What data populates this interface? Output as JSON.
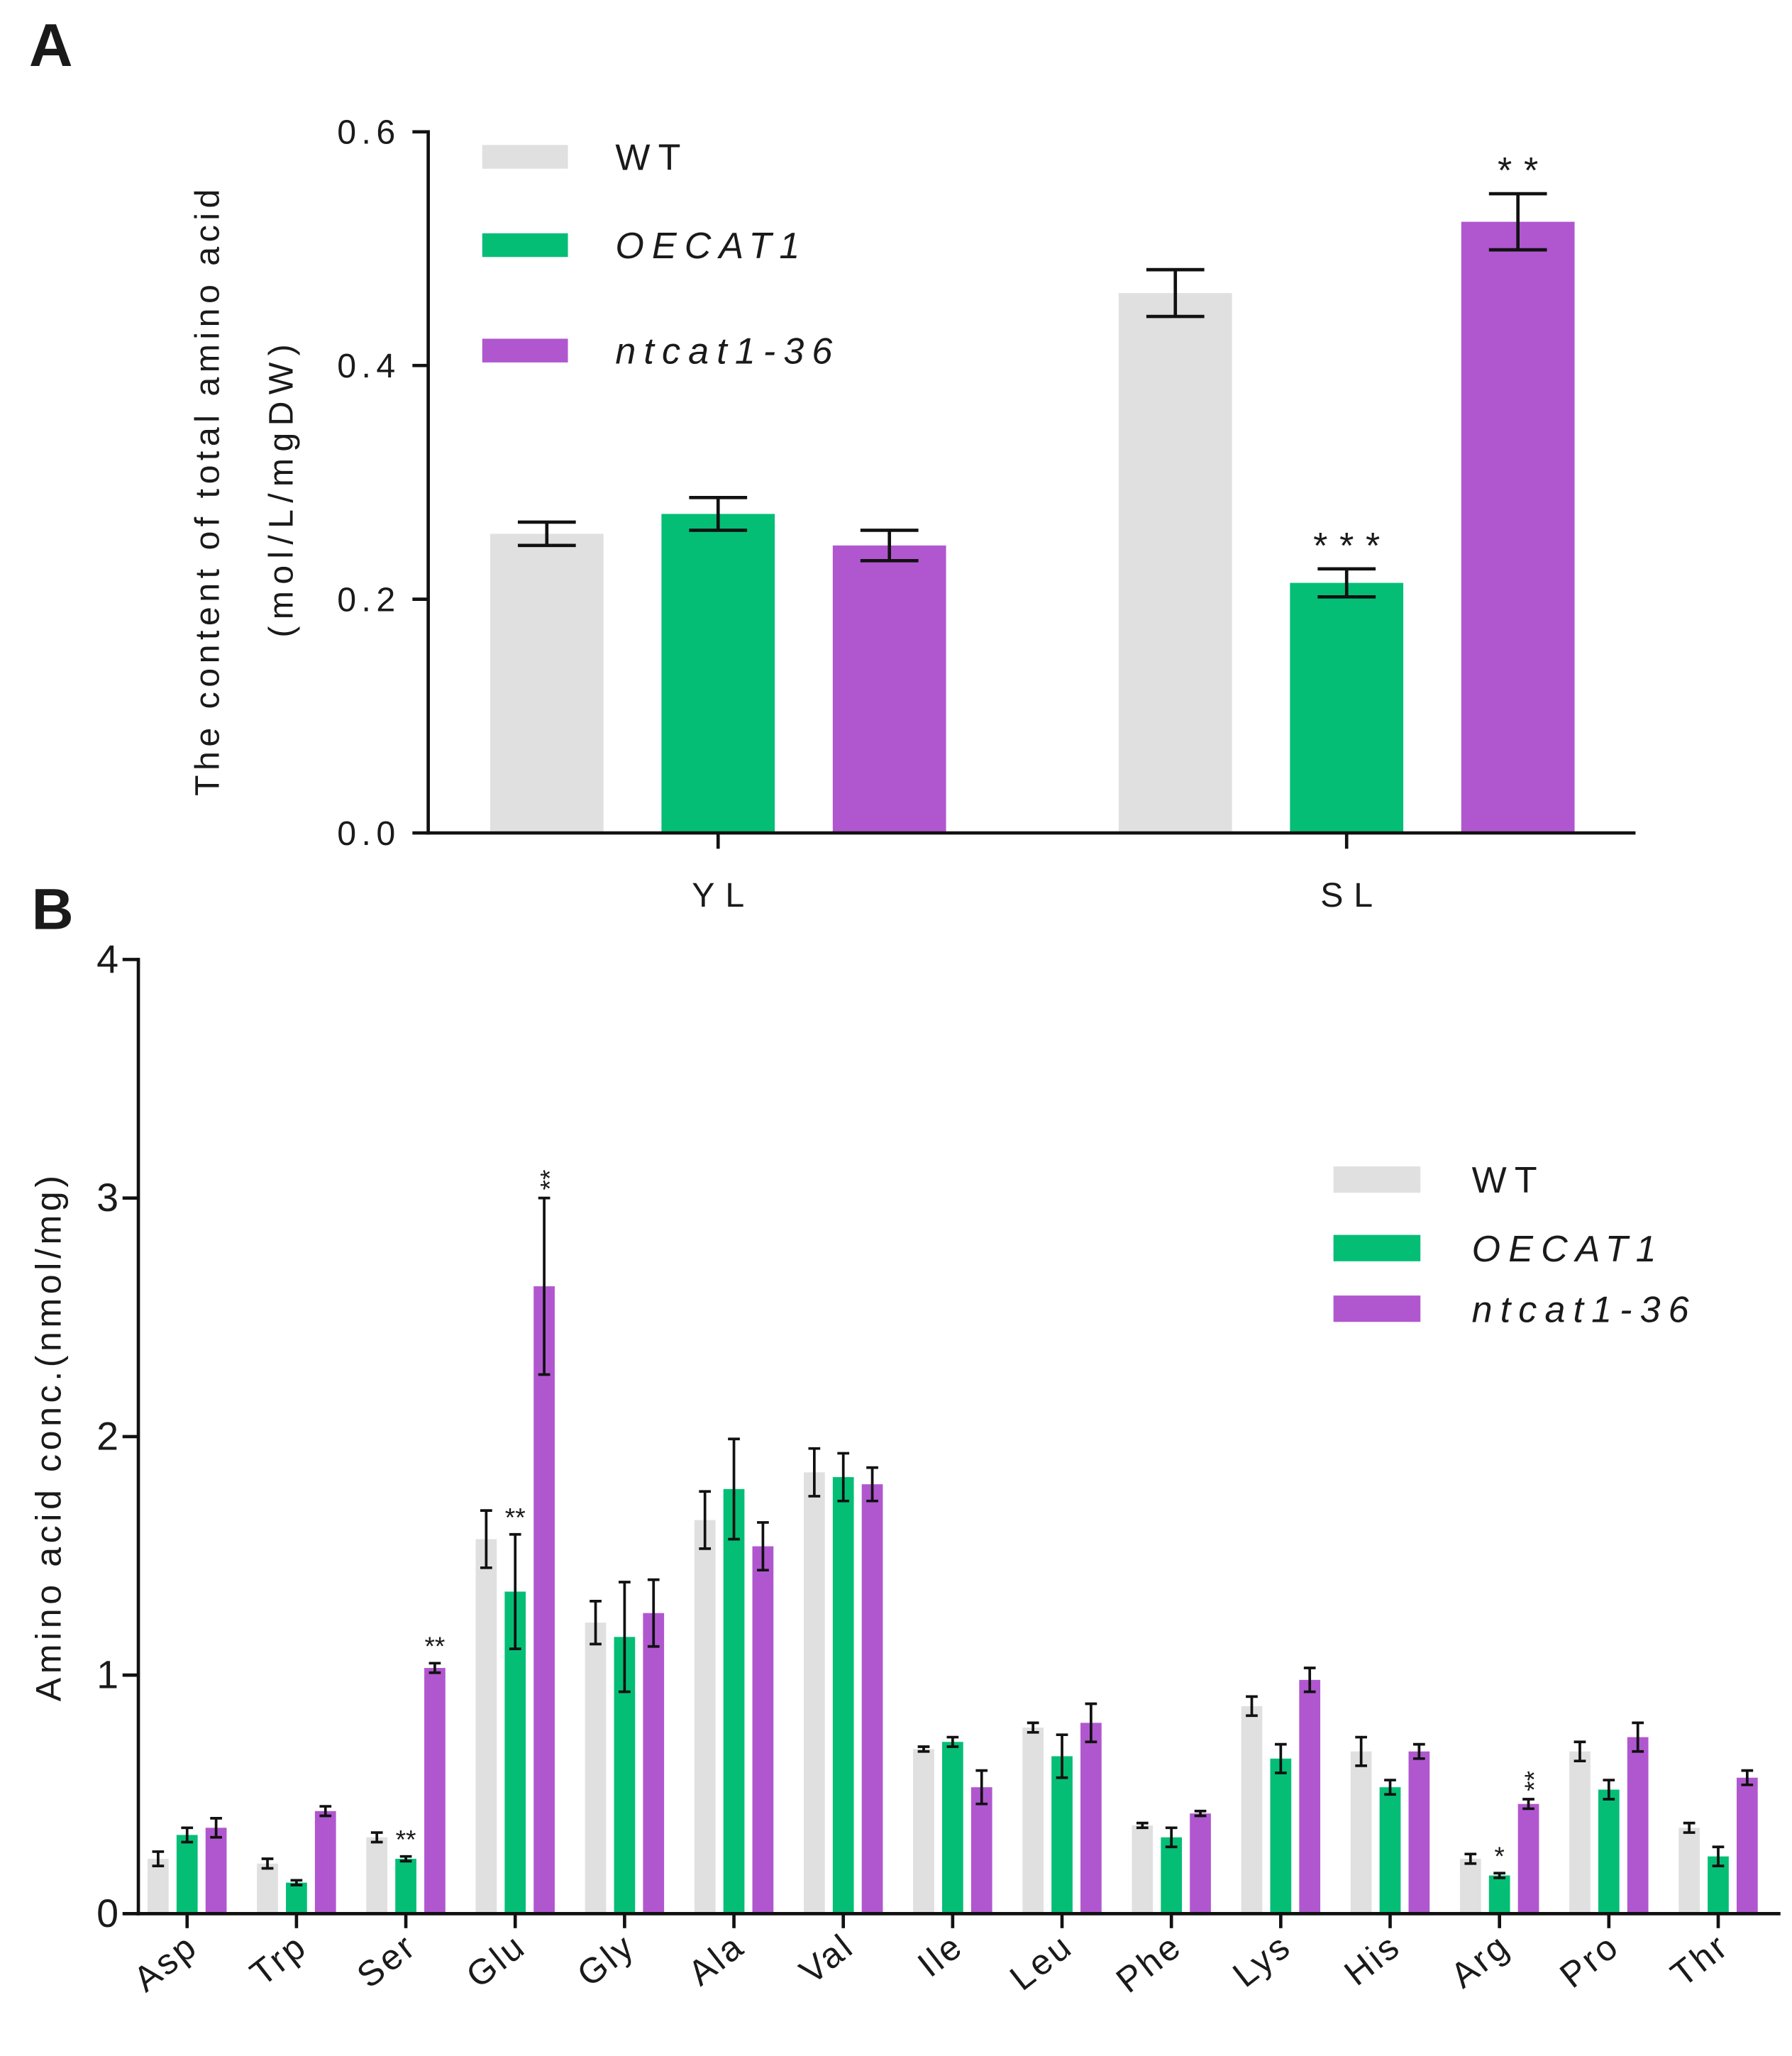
{
  "chart_data": [
    {
      "type": "bar",
      "panel_label": "A",
      "ylabel": "The content of total amino acid",
      "ylabel_unit": "(mol/L/mgDW)",
      "ylim": [
        0,
        0.6
      ],
      "yticks": [
        0,
        0.2,
        0.4,
        0.6
      ],
      "ytick_labels": [
        "0.0",
        "0.2",
        "0.4",
        "0.6"
      ],
      "categories": [
        "YL",
        "SL"
      ],
      "series": [
        {
          "name": "WT",
          "color": "#e0e0e0",
          "values": [
            0.256,
            0.462
          ],
          "errors": [
            0.01,
            0.02
          ]
        },
        {
          "name": "OECAT1",
          "color": "#05be76",
          "values": [
            0.273,
            0.214
          ],
          "errors": [
            0.014,
            0.012
          ]
        },
        {
          "name": "ntcat1-36",
          "color": "#b057cf",
          "values": [
            0.246,
            0.523
          ],
          "errors": [
            0.013,
            0.024
          ]
        }
      ],
      "annotations": [
        {
          "category": "SL",
          "series": "OECAT1",
          "text": "***"
        },
        {
          "category": "SL",
          "series": "ntcat1-36",
          "text": "**"
        }
      ]
    },
    {
      "type": "bar",
      "panel_label": "B",
      "ylabel": "Amino acid conc.(nmol/mg)",
      "ylim": [
        0,
        4
      ],
      "yticks": [
        0,
        1,
        2,
        3,
        4
      ],
      "ytick_labels": [
        "0",
        "1",
        "2",
        "3",
        "4"
      ],
      "categories": [
        "Asp",
        "Trp",
        "Ser",
        "Glu",
        "Gly",
        "Ala",
        "Val",
        "Ile",
        "Leu",
        "Phe",
        "Lys",
        "His",
        "Arg",
        "Pro",
        "Thr"
      ],
      "series": [
        {
          "name": "WT",
          "color": "#e0e0e0",
          "values": [
            0.23,
            0.21,
            0.32,
            1.57,
            1.22,
            1.65,
            1.85,
            0.69,
            0.78,
            0.37,
            0.87,
            0.68,
            0.23,
            0.68,
            0.36
          ],
          "errors": [
            0.03,
            0.02,
            0.02,
            0.12,
            0.09,
            0.12,
            0.1,
            0.01,
            0.02,
            0.01,
            0.04,
            0.06,
            0.02,
            0.04,
            0.02
          ]
        },
        {
          "name": "OECAT1",
          "color": "#05be76",
          "values": [
            0.33,
            0.13,
            0.23,
            1.35,
            1.16,
            1.78,
            1.83,
            0.72,
            0.66,
            0.32,
            0.65,
            0.53,
            0.16,
            0.52,
            0.24
          ],
          "errors": [
            0.03,
            0.01,
            0.01,
            0.24,
            0.23,
            0.21,
            0.1,
            0.02,
            0.09,
            0.04,
            0.06,
            0.03,
            0.01,
            0.04,
            0.04
          ]
        },
        {
          "name": "ntcat1-36",
          "color": "#b057cf",
          "values": [
            0.36,
            0.43,
            1.03,
            2.63,
            1.26,
            1.54,
            1.8,
            0.53,
            0.8,
            0.42,
            0.98,
            0.68,
            0.46,
            0.74,
            0.57
          ],
          "errors": [
            0.04,
            0.02,
            0.02,
            0.37,
            0.14,
            0.1,
            0.07,
            0.07,
            0.08,
            0.01,
            0.05,
            0.03,
            0.02,
            0.06,
            0.03
          ]
        }
      ],
      "annotations": [
        {
          "category": "Ser",
          "series": "OECAT1",
          "text": "**"
        },
        {
          "category": "Ser",
          "series": "ntcat1-36",
          "text": "**"
        },
        {
          "category": "Glu",
          "series": "OECAT1",
          "text": "**"
        },
        {
          "category": "Glu",
          "series": "ntcat1-36",
          "text": "**"
        },
        {
          "category": "Arg",
          "series": "OECAT1",
          "text": "*"
        },
        {
          "category": "Arg",
          "series": "ntcat1-36",
          "text": "**"
        }
      ]
    }
  ]
}
